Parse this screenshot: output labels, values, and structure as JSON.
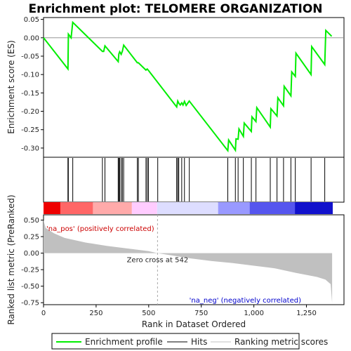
{
  "chart_data": {
    "type": "line",
    "title": "Enrichment plot: TELOMERE ORGANIZATION",
    "es_panel": {
      "ylabel": "Enrichment score (ES)",
      "ylim": [
        -0.325,
        0.055
      ],
      "yticks": [
        0.05,
        0.0,
        -0.05,
        -0.1,
        -0.15,
        -0.2,
        -0.25,
        -0.3
      ],
      "ytick_labels": [
        "0.05",
        "0.00",
        "-0.05",
        "-0.10",
        "-0.15",
        "-0.20",
        "-0.25",
        "-0.30"
      ],
      "series": [
        {
          "name": "Enrichment profile",
          "color": "#00ee00",
          "points": [
            [
              0,
              0.0
            ],
            [
              116,
              -0.085
            ],
            [
              118,
              0.01
            ],
            [
              131,
              0.0
            ],
            [
              139,
              0.042
            ],
            [
              280,
              -0.037
            ],
            [
              286,
              -0.037
            ],
            [
              292,
              -0.022
            ],
            [
              355,
              -0.065
            ],
            [
              358,
              -0.044
            ],
            [
              362,
              -0.038
            ],
            [
              369,
              -0.045
            ],
            [
              375,
              -0.036
            ],
            [
              381,
              -0.02
            ],
            [
              446,
              -0.068
            ],
            [
              451,
              -0.068
            ],
            [
              487,
              -0.088
            ],
            [
              493,
              -0.085
            ],
            [
              499,
              -0.089
            ],
            [
              633,
              -0.188
            ],
            [
              638,
              -0.172
            ],
            [
              643,
              -0.178
            ],
            [
              650,
              -0.183
            ],
            [
              657,
              -0.177
            ],
            [
              663,
              -0.183
            ],
            [
              670,
              -0.173
            ],
            [
              678,
              -0.184
            ],
            [
              693,
              -0.172
            ],
            [
              876,
              -0.307
            ],
            [
              880,
              -0.278
            ],
            [
              912,
              -0.306
            ],
            [
              915,
              -0.275
            ],
            [
              925,
              -0.276
            ],
            [
              929,
              -0.248
            ],
            [
              950,
              -0.268
            ],
            [
              954,
              -0.232
            ],
            [
              988,
              -0.255
            ],
            [
              991,
              -0.215
            ],
            [
              1010,
              -0.228
            ],
            [
              1014,
              -0.19
            ],
            [
              1078,
              -0.243
            ],
            [
              1081,
              -0.193
            ],
            [
              1110,
              -0.213
            ],
            [
              1114,
              -0.163
            ],
            [
              1141,
              -0.185
            ],
            [
              1144,
              -0.132
            ],
            [
              1176,
              -0.158
            ],
            [
              1180,
              -0.093
            ],
            [
              1197,
              -0.105
            ],
            [
              1200,
              -0.042
            ],
            [
              1272,
              -0.1
            ],
            [
              1275,
              -0.024
            ],
            [
              1337,
              -0.073
            ],
            [
              1342,
              0.02
            ],
            [
              1370,
              0.004
            ]
          ]
        }
      ]
    },
    "hits_panel": {
      "series": [
        {
          "name": "Hits",
          "color": "#000000",
          "ranks": [
            116,
            118,
            139,
            280,
            292,
            355,
            358,
            362,
            369,
            375,
            381,
            446,
            451,
            487,
            493,
            499,
            543,
            633,
            638,
            643,
            657,
            670,
            693,
            876,
            912,
            925,
            950,
            988,
            1010,
            1078,
            1110,
            1141,
            1176,
            1197,
            1272,
            1337
          ]
        }
      ],
      "colorbar": {
        "stops": [
          "#ee0000",
          "#ff6666",
          "#ffaaaa",
          "#ffccff",
          "#ddddff",
          "#9999ff",
          "#5555ee",
          "#1111cc"
        ],
        "bounds": [
          0,
          80,
          235,
          420,
          540,
          830,
          980,
          1195,
          1375
        ]
      }
    },
    "metric_panel": {
      "ylabel": "Ranked list metric (PreRanked)",
      "ylim": [
        -0.78,
        0.58
      ],
      "yticks": [
        0.5,
        0.25,
        0.0,
        -0.25,
        -0.5,
        -0.75
      ],
      "ytick_labels": [
        "0.50",
        "0.25",
        "0.00",
        "-0.25",
        "-0.50",
        "-0.75"
      ],
      "series": [
        {
          "name": "Ranking metric scores",
          "color": "#c0c0c0",
          "points": [
            [
              0,
              0.5
            ],
            [
              10,
              0.38
            ],
            [
              50,
              0.3
            ],
            [
              100,
              0.23
            ],
            [
              200,
              0.16
            ],
            [
              300,
              0.11
            ],
            [
              400,
              0.07
            ],
            [
              500,
              0.03
            ],
            [
              542,
              0.0
            ],
            [
              600,
              -0.03
            ],
            [
              700,
              -0.08
            ],
            [
              800,
              -0.12
            ],
            [
              900,
              -0.15
            ],
            [
              1000,
              -0.19
            ],
            [
              1100,
              -0.23
            ],
            [
              1200,
              -0.3
            ],
            [
              1300,
              -0.36
            ],
            [
              1340,
              -0.4
            ],
            [
              1365,
              -0.47
            ],
            [
              1372,
              -0.75
            ]
          ]
        }
      ],
      "annotations": {
        "zero_cross": "Zero cross at 542",
        "zero_cross_rank": 542,
        "pos_label": "'na_pos' (positively correlated)",
        "neg_label": "'na_neg' (negatively correlated)"
      }
    },
    "x_axis": {
      "xlabel": "Rank in Dataset Ordered",
      "xlim": [
        0,
        1375
      ],
      "xticks": [
        0,
        250,
        500,
        750,
        1000,
        1250
      ],
      "xtick_labels": [
        "0",
        "250",
        "500",
        "750",
        "1,000",
        "1,250"
      ]
    },
    "legend": {
      "placement": "bottom",
      "items": [
        {
          "label": "Enrichment profile",
          "color": "#00ee00"
        },
        {
          "label": "Hits",
          "color": "#000000"
        },
        {
          "label": "Ranking metric scores",
          "color": "#c0c0c0"
        }
      ]
    }
  }
}
